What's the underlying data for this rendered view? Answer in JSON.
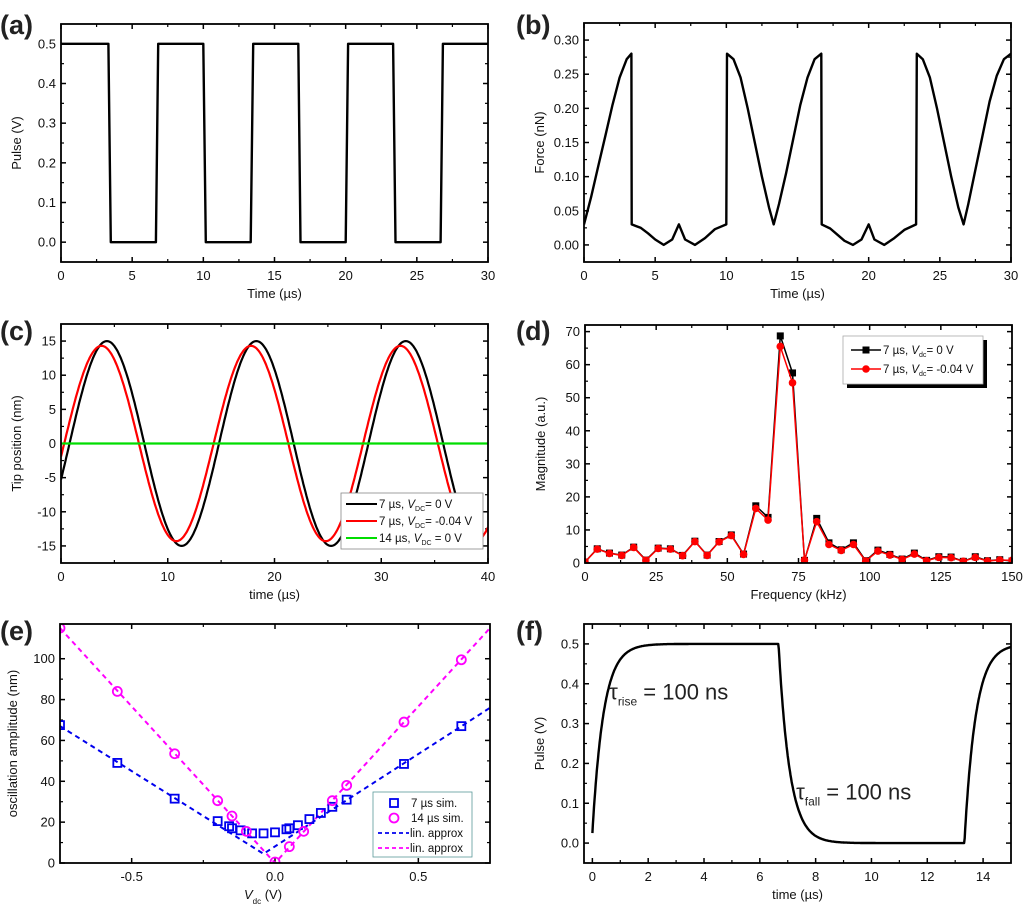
{
  "chart_data": [
    {
      "id": "a",
      "panel_label": "(a)",
      "type": "line",
      "xlabel": "Time (µs)",
      "ylabel": "Pulse (V)",
      "xlim": [
        0,
        30
      ],
      "ylim": [
        -0.05,
        0.55
      ],
      "xticks": [
        0,
        5,
        10,
        15,
        20,
        25,
        30
      ],
      "xtick_labels": [
        "0",
        "5",
        "10",
        "15",
        "20",
        "25",
        "30"
      ],
      "yticks": [
        0.0,
        0.1,
        0.2,
        0.3,
        0.4,
        0.5
      ],
      "ytick_labels": [
        "0.0",
        "0.1",
        "0.2",
        "0.3",
        "0.4",
        "0.5"
      ],
      "series": [
        {
          "name": "pulse",
          "color": "#000000",
          "x": [
            0,
            3.33,
            3.5,
            6.67,
            6.83,
            10.0,
            10.17,
            13.33,
            13.5,
            16.67,
            16.83,
            20.0,
            20.17,
            23.33,
            23.5,
            26.67,
            26.83,
            30
          ],
          "y": [
            0.5,
            0.5,
            0.0,
            0.0,
            0.5,
            0.5,
            0.0,
            0.0,
            0.5,
            0.5,
            0.0,
            0.0,
            0.5,
            0.5,
            0.0,
            0.0,
            0.5,
            0.5
          ]
        }
      ]
    },
    {
      "id": "b",
      "panel_label": "(b)",
      "type": "line",
      "xlabel": "Time (µs)",
      "ylabel": "Force (nN)",
      "xlim": [
        0,
        30
      ],
      "ylim": [
        -0.025,
        0.325
      ],
      "xticks": [
        0,
        5,
        10,
        15,
        20,
        25,
        30
      ],
      "xtick_labels": [
        "0",
        "5",
        "10",
        "15",
        "20",
        "25",
        "30"
      ],
      "yticks": [
        0.0,
        0.05,
        0.1,
        0.15,
        0.2,
        0.25,
        0.3
      ],
      "ytick_labels": [
        "0.00",
        "0.05",
        "0.10",
        "0.15",
        "0.20",
        "0.25",
        "0.30"
      ],
      "series": [
        {
          "name": "force",
          "color": "#000000",
          "x": [
            0,
            0.5,
            1.0,
            1.5,
            2.0,
            2.5,
            3.0,
            3.33,
            3.35,
            4.0,
            4.5,
            5.0,
            5.6,
            6.2,
            6.67,
            7.1,
            7.8,
            8.5,
            9.2,
            10.0,
            10.05,
            10.5,
            11.0,
            11.5,
            12.0,
            12.5,
            13.0,
            13.33,
            13.7,
            14.2,
            14.7,
            15.2,
            15.7,
            16.2,
            16.67,
            16.7,
            17.3,
            17.8,
            18.3,
            18.9,
            19.5,
            20.0,
            20.4,
            21.1,
            21.8,
            22.5,
            23.33,
            23.38,
            23.8,
            24.3,
            24.8,
            25.3,
            25.8,
            26.3,
            26.67,
            27.0,
            27.5,
            28.0,
            28.5,
            29.0,
            29.5,
            30.0
          ],
          "y": [
            0.03,
            0.07,
            0.115,
            0.16,
            0.205,
            0.245,
            0.272,
            0.28,
            0.03,
            0.025,
            0.017,
            0.008,
            0.0,
            0.008,
            0.03,
            0.008,
            0.0,
            0.01,
            0.023,
            0.03,
            0.28,
            0.272,
            0.245,
            0.2,
            0.15,
            0.1,
            0.055,
            0.03,
            0.06,
            0.105,
            0.155,
            0.205,
            0.245,
            0.272,
            0.28,
            0.03,
            0.024,
            0.015,
            0.006,
            0.0,
            0.008,
            0.03,
            0.008,
            0.0,
            0.01,
            0.022,
            0.03,
            0.28,
            0.272,
            0.245,
            0.2,
            0.15,
            0.1,
            0.055,
            0.03,
            0.06,
            0.11,
            0.16,
            0.21,
            0.248,
            0.272,
            0.28
          ]
        }
      ]
    },
    {
      "id": "c",
      "panel_label": "(c)",
      "type": "line",
      "xlabel": "time (µs)",
      "ylabel": "Tip position (nm)",
      "xlim": [
        0,
        40
      ],
      "ylim": [
        -17.5,
        17.5
      ],
      "xticks": [
        0,
        10,
        20,
        30,
        40
      ],
      "xtick_labels": [
        "0",
        "10",
        "20",
        "30",
        "40"
      ],
      "yticks": [
        -15,
        -10,
        -5,
        0,
        5,
        10,
        15
      ],
      "ytick_labels": [
        "-15",
        "-10",
        "-5",
        "0",
        "5",
        "10",
        "15"
      ],
      "legend": {
        "position": "bottom-right",
        "entries": [
          {
            "prefix": "7 µs, ",
            "var": "V",
            "sub": "DC",
            "suffix": "= 0 V",
            "color": "#000000"
          },
          {
            "prefix": "7 µs, ",
            "var": "V",
            "sub": "DC",
            "suffix": "= -0.04 V",
            "color": "#ff0000"
          },
          {
            "prefix": "14 µs, ",
            "var": "V",
            "sub": "DC",
            "suffix": " = 0 V",
            "color": "#00dd00"
          }
        ]
      },
      "series": [
        {
          "name": "7 µs, V_DC = 0 V",
          "color": "#000000",
          "kind": "sine",
          "amplitude": 15.0,
          "period": 14.0,
          "peak_time": 4.3,
          "x_range": [
            0,
            37
          ]
        },
        {
          "name": "7 µs, V_DC = -0.04 V",
          "color": "#ff0000",
          "kind": "sine",
          "amplitude": 14.3,
          "period": 14.0,
          "peak_time": 3.8,
          "x_range": [
            0,
            40
          ]
        },
        {
          "name": "14 µs, V_DC = 0 V",
          "color": "#00dd00",
          "kind": "constant",
          "value": 0,
          "x_range": [
            0,
            40
          ]
        }
      ]
    },
    {
      "id": "d",
      "panel_label": "(d)",
      "type": "line",
      "xlabel": "Frequency (kHz)",
      "ylabel": "Magnitude (a.u.)",
      "xlim": [
        0,
        150
      ],
      "ylim": [
        0,
        72
      ],
      "xticks": [
        0,
        25,
        50,
        75,
        100,
        125,
        150
      ],
      "xtick_labels": [
        "0",
        "25",
        "50",
        "75",
        "100",
        "125",
        "150"
      ],
      "yticks": [
        0,
        10,
        20,
        30,
        40,
        50,
        60,
        70
      ],
      "ytick_labels": [
        "0",
        "10",
        "20",
        "30",
        "40",
        "50",
        "60",
        "70"
      ],
      "legend": {
        "position": "top-right",
        "entries": [
          {
            "prefix": "7 µs, ",
            "var": "V",
            "sub": "dc",
            "suffix": "= 0 V",
            "color": "#000000",
            "marker": "square"
          },
          {
            "prefix": "7 µs, ",
            "var": "V",
            "sub": "dc",
            "suffix": "= -0.04 V",
            "color": "#ff0000",
            "marker": "circle"
          }
        ]
      },
      "x": [
        0,
        4.3,
        8.6,
        12.9,
        17.1,
        21.4,
        25.7,
        30.0,
        34.3,
        38.6,
        42.9,
        47.1,
        51.4,
        55.7,
        60.0,
        64.3,
        68.6,
        72.9,
        77.1,
        81.4,
        85.7,
        90.0,
        94.3,
        98.6,
        102.9,
        107.1,
        111.4,
        115.7,
        120.0,
        124.3,
        128.6,
        132.9,
        137.1,
        141.4,
        145.7,
        150.0
      ],
      "series": [
        {
          "name": "7 µs, V_dc = 0 V",
          "color": "#000000",
          "marker": "square",
          "values": [
            0.3,
            4.3,
            3.0,
            2.4,
            4.8,
            0.9,
            4.5,
            4.3,
            2.3,
            6.6,
            2.4,
            6.5,
            8.5,
            2.7,
            17.3,
            13.8,
            68.7,
            57.5,
            0.8,
            13.5,
            6.1,
            4.0,
            6.1,
            0.7,
            3.9,
            2.6,
            1.2,
            3.0,
            0.8,
            1.9,
            1.8,
            0.5,
            1.9,
            0.7,
            1.0,
            0.6
          ]
        },
        {
          "name": "7 µs, V_dc = -0.04 V",
          "color": "#ff0000",
          "marker": "circle",
          "values": [
            0.3,
            4.2,
            2.9,
            2.3,
            4.7,
            0.8,
            4.4,
            4.2,
            2.2,
            6.5,
            2.3,
            6.4,
            8.3,
            2.6,
            16.5,
            13.0,
            65.5,
            54.5,
            0.9,
            12.5,
            5.6,
            3.8,
            5.6,
            0.6,
            3.6,
            2.4,
            1.1,
            2.7,
            0.7,
            1.7,
            1.6,
            0.5,
            1.7,
            0.6,
            0.9,
            0.8
          ]
        }
      ]
    },
    {
      "id": "e",
      "panel_label": "(e)",
      "type": "scatter",
      "xlabel_var": "V",
      "xlabel_sub": "dc",
      "xlabel_suffix": " (V)",
      "ylabel": "oscillation amplitude (nm)",
      "xlim": [
        -0.75,
        0.75
      ],
      "ylim": [
        0,
        117
      ],
      "xticks": [
        -0.5,
        0.0,
        0.5
      ],
      "xtick_labels": [
        "-0.5",
        "0.0",
        "0.5"
      ],
      "yticks": [
        0,
        20,
        40,
        60,
        80,
        100
      ],
      "ytick_labels": [
        "0",
        "20",
        "40",
        "60",
        "80",
        "100"
      ],
      "legend": {
        "position": "bottom-right",
        "entries": [
          {
            "label": "7 µs sim.",
            "color": "#0000ee",
            "marker": "square"
          },
          {
            "label": "14 µs sim.",
            "color": "#ff00ff",
            "marker": "circle"
          },
          {
            "label": "lin. approx",
            "color": "#0000ee",
            "marker": "dash"
          },
          {
            "label": "lin. approx",
            "color": "#ff00ff",
            "marker": "dash"
          }
        ]
      },
      "series": [
        {
          "name": "7 µs sim.",
          "color": "#0000ee",
          "marker": "square",
          "x": [
            -0.75,
            -0.55,
            -0.35,
            -0.2,
            -0.16,
            -0.15,
            -0.12,
            -0.08,
            -0.04,
            0.0,
            0.04,
            0.05,
            0.08,
            0.12,
            0.16,
            0.2,
            0.25,
            0.45,
            0.65
          ],
          "y": [
            67.5,
            49,
            31.5,
            20.5,
            18,
            17,
            16,
            14.5,
            14.5,
            15,
            16.5,
            17,
            18.5,
            21.5,
            24.5,
            27.5,
            31,
            48.5,
            67
          ]
        },
        {
          "name": "14 µs sim.",
          "color": "#ff00ff",
          "marker": "circle",
          "x": [
            -0.75,
            -0.55,
            -0.35,
            -0.2,
            -0.15,
            -0.1,
            0.0,
            0.05,
            0.1,
            0.2,
            0.25,
            0.45,
            0.65
          ],
          "y": [
            115,
            84,
            53.5,
            30.5,
            23,
            15.5,
            0.5,
            8,
            15.5,
            30.5,
            38,
            69,
            99.5
          ]
        },
        {
          "name": "lin. approx (7 µs)",
          "color": "#0000ee",
          "style": "dashed",
          "x": [
            -0.75,
            -0.04,
            0.75
          ],
          "y": [
            67,
            4.5,
            76
          ]
        },
        {
          "name": "lin. approx (14 µs)",
          "color": "#ff00ff",
          "style": "dashed",
          "x": [
            -0.75,
            0.0,
            0.75
          ],
          "y": [
            115,
            0,
            115
          ]
        }
      ]
    },
    {
      "id": "f",
      "panel_label": "(f)",
      "type": "line",
      "xlabel": "time (µs)",
      "ylabel": "Pulse (V)",
      "xlim": [
        -0.3,
        15
      ],
      "ylim": [
        -0.05,
        0.55
      ],
      "xticks": [
        0,
        2,
        4,
        6,
        8,
        10,
        12,
        14
      ],
      "xtick_labels": [
        "0",
        "2",
        "4",
        "6",
        "8",
        "10",
        "12",
        "14"
      ],
      "yticks": [
        0.0,
        0.1,
        0.2,
        0.3,
        0.4,
        0.5
      ],
      "ytick_labels": [
        "0.0",
        "0.1",
        "0.2",
        "0.3",
        "0.4",
        "0.5"
      ],
      "annotations": [
        {
          "symbol": "τ",
          "sub": "rise",
          "text": " = 100 ns",
          "x": 0.6,
          "y": 0.38
        },
        {
          "symbol": "τ",
          "sub": "fall",
          "text": " = 100 ns",
          "x": 7.3,
          "y": 0.13
        }
      ],
      "series": [
        {
          "name": "pulse",
          "color": "#000000",
          "kind": "rc_pulse",
          "v_high": 0.5,
          "rise_start": 0.0,
          "fall_start": 6.67,
          "rise2_start": 13.33,
          "start_value": 0.025,
          "x_range": [
            0,
            15
          ]
        }
      ]
    }
  ]
}
